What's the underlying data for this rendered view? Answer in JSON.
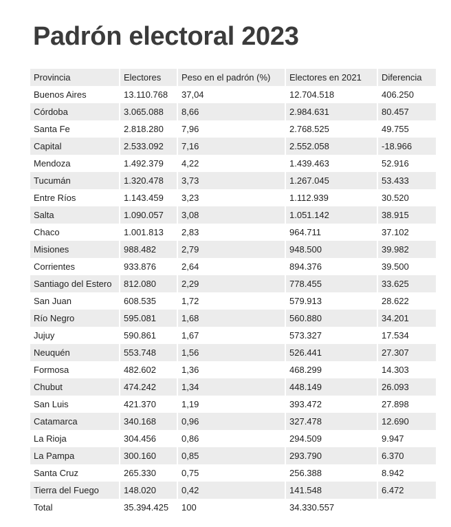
{
  "title": "Padrón electoral 2023",
  "table": {
    "headers": [
      "Provincia",
      "Electores",
      "Peso en el padrón (%)",
      "Electores en 2021",
      "Diferencia"
    ],
    "rows": [
      [
        "Buenos Aires",
        "13.110.768",
        "37,04",
        "12.704.518",
        "406.250"
      ],
      [
        "Córdoba",
        "3.065.088",
        "8,66",
        "2.984.631",
        "80.457"
      ],
      [
        "Santa Fe",
        "2.818.280",
        "7,96",
        "2.768.525",
        "49.755"
      ],
      [
        "Capital",
        "2.533.092",
        "7,16",
        "2.552.058",
        "-18.966"
      ],
      [
        "Mendoza",
        "1.492.379",
        "4,22",
        "1.439.463",
        "52.916"
      ],
      [
        "Tucumán",
        "1.320.478",
        "3,73",
        "1.267.045",
        "53.433"
      ],
      [
        "Entre Ríos",
        "1.143.459",
        "3,23",
        "1.112.939",
        "30.520"
      ],
      [
        "Salta",
        "1.090.057",
        "3,08",
        "1.051.142",
        "38.915"
      ],
      [
        "Chaco",
        "1.001.813",
        "2,83",
        "964.711",
        "37.102"
      ],
      [
        "Misiones",
        "988.482",
        "2,79",
        "948.500",
        "39.982"
      ],
      [
        "Corrientes",
        "933.876",
        "2,64",
        "894.376",
        "39.500"
      ],
      [
        "Santiago del Estero",
        "812.080",
        "2,29",
        "778.455",
        "33.625"
      ],
      [
        "San Juan",
        "608.535",
        "1,72",
        "579.913",
        "28.622"
      ],
      [
        "Río Negro",
        "595.081",
        "1,68",
        "560.880",
        "34.201"
      ],
      [
        "Jujuy",
        "590.861",
        "1,67",
        "573.327",
        "17.534"
      ],
      [
        "Neuquén",
        "553.748",
        "1,56",
        "526.441",
        "27.307"
      ],
      [
        "Formosa",
        "482.602",
        "1,36",
        "468.299",
        "14.303"
      ],
      [
        "Chubut",
        "474.242",
        "1,34",
        "448.149",
        "26.093"
      ],
      [
        "San Luis",
        "421.370",
        "1,19",
        "393.472",
        "27.898"
      ],
      [
        "Catamarca",
        "340.168",
        "0,96",
        "327.478",
        "12.690"
      ],
      [
        "La Rioja",
        "304.456",
        "0,86",
        "294.509",
        "9.947"
      ],
      [
        "La Pampa",
        "300.160",
        "0,85",
        "293.790",
        "6.370"
      ],
      [
        "Santa Cruz",
        "265.330",
        "0,75",
        "256.388",
        "8.942"
      ],
      [
        "Tierra del Fuego",
        "148.020",
        "0,42",
        "141.548",
        "6.472"
      ]
    ],
    "total": [
      "Total",
      "35.394.425",
      "100",
      "34.330.557",
      ""
    ]
  }
}
